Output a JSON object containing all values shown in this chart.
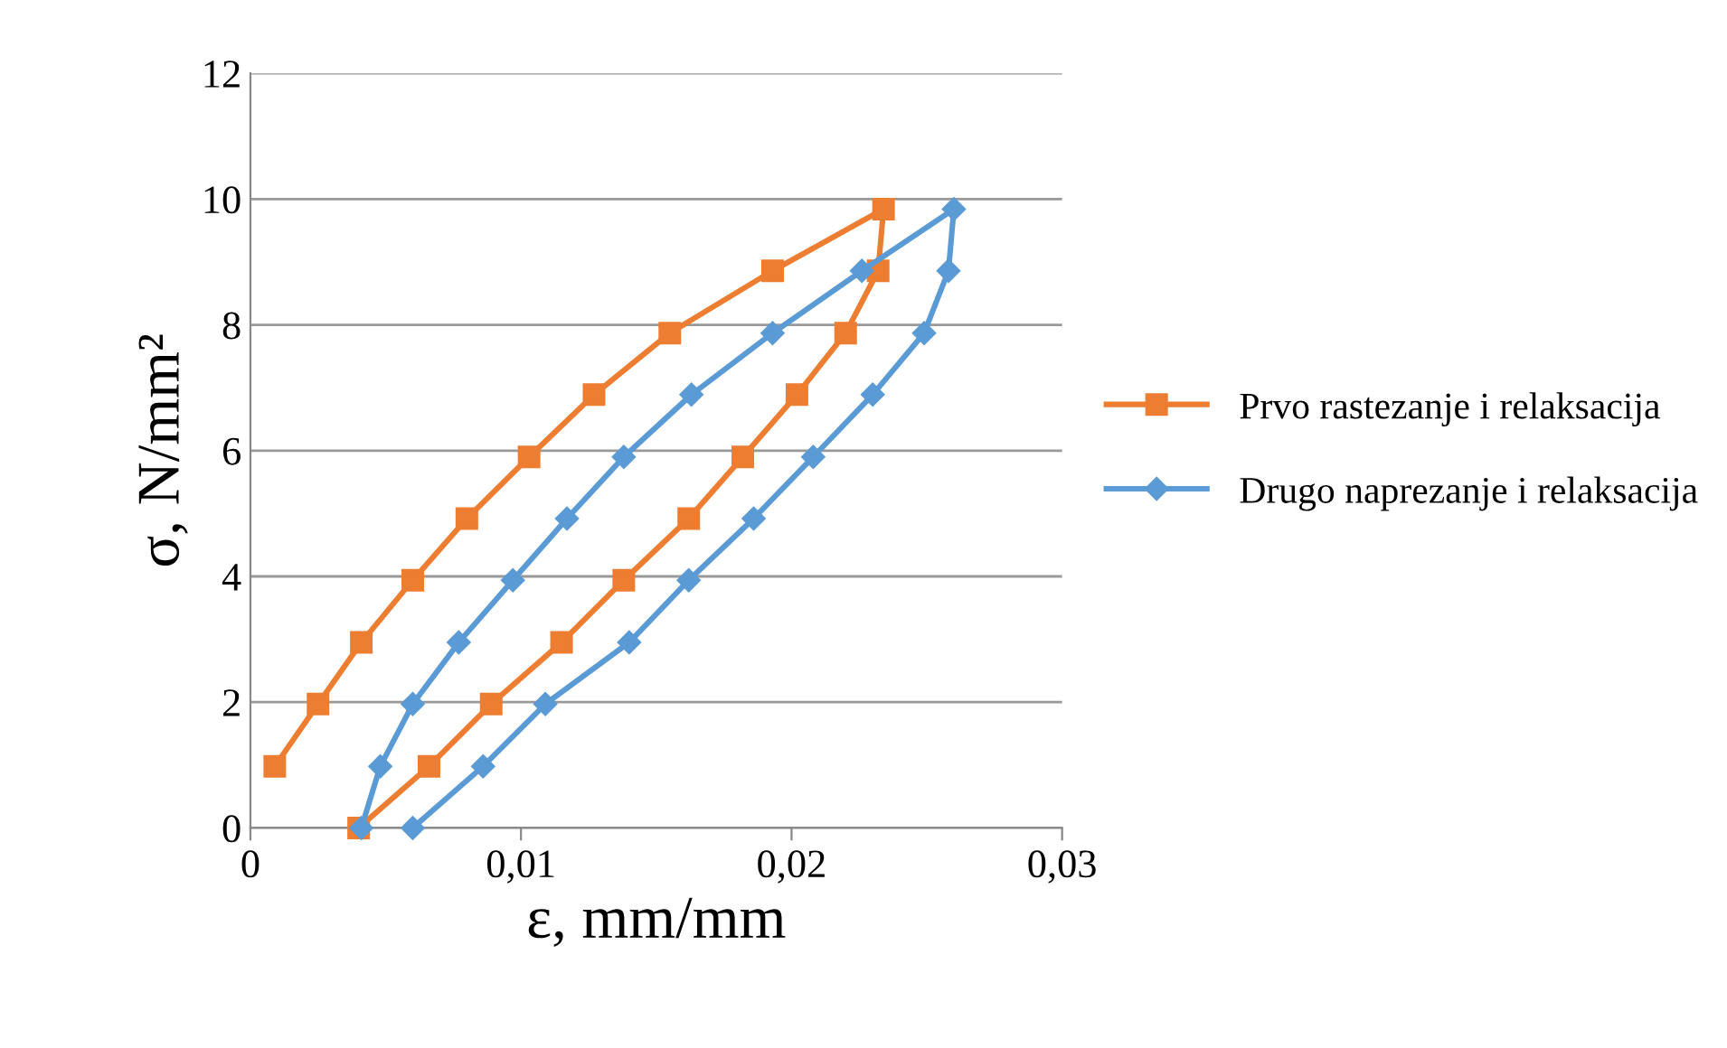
{
  "chart_data": {
    "type": "line",
    "xlabel": "ε, mm/mm",
    "ylabel": "σ, N/mm²",
    "xlim": [
      0,
      0.03
    ],
    "xticks": [
      {
        "value": 0,
        "label": "0"
      },
      {
        "value": 0.01,
        "label": "0,01"
      },
      {
        "value": 0.02,
        "label": "0,02"
      },
      {
        "value": 0.03,
        "label": "0,03"
      }
    ],
    "ylim": [
      0,
      12
    ],
    "yticks": [
      0,
      2,
      4,
      6,
      8,
      10,
      12
    ],
    "grid": "y",
    "legend": "right",
    "series": [
      {
        "name": "Prvo rastezanje i relaksacija",
        "color": "#ed7d31",
        "marker": "square",
        "x": [
          0.0009,
          0.0025,
          0.0041,
          0.006,
          0.008,
          0.0103,
          0.0127,
          0.0155,
          0.0193,
          0.0234,
          0.0232,
          0.022,
          0.0202,
          0.0182,
          0.0162,
          0.0138,
          0.0115,
          0.0089,
          0.0066,
          0.004
        ],
        "values": [
          0.98,
          1.97,
          2.95,
          3.94,
          4.92,
          5.9,
          6.89,
          7.87,
          8.86,
          9.84,
          8.86,
          7.87,
          6.89,
          5.9,
          4.92,
          3.94,
          2.95,
          1.97,
          0.98,
          0
        ]
      },
      {
        "name": "Drugo naprezanje i relaksacija",
        "color": "#5b9bd5",
        "marker": "diamond",
        "x": [
          0.0041,
          0.0048,
          0.006,
          0.0077,
          0.0097,
          0.0117,
          0.0138,
          0.0163,
          0.0193,
          0.0226,
          0.026,
          0.0258,
          0.0249,
          0.023,
          0.0208,
          0.0186,
          0.0162,
          0.014,
          0.0109,
          0.0086,
          0.006
        ],
        "values": [
          0,
          0.98,
          1.97,
          2.95,
          3.94,
          4.92,
          5.9,
          6.89,
          7.87,
          8.86,
          9.84,
          8.86,
          7.87,
          6.89,
          5.9,
          4.92,
          3.94,
          2.95,
          1.97,
          0.98,
          0
        ]
      }
    ]
  }
}
